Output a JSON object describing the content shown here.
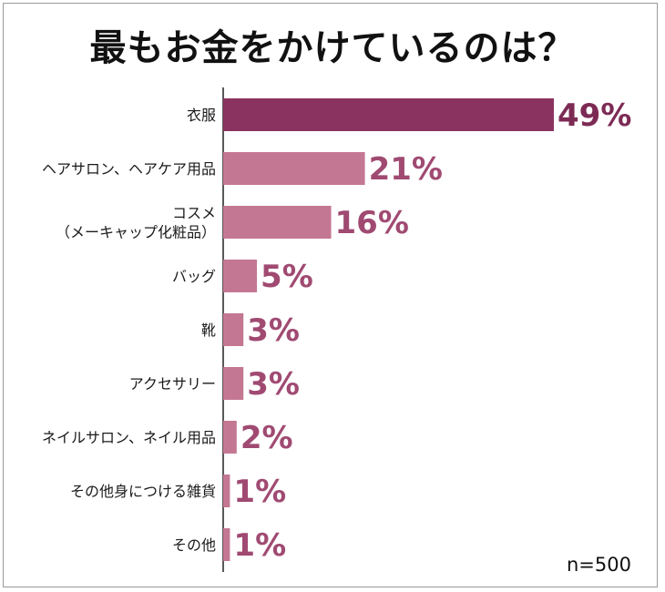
{
  "chart_data": {
    "type": "bar",
    "orientation": "horizontal",
    "title": "最もお金をかけているのは？",
    "categories": [
      [
        "衣服"
      ],
      [
        "ヘアサロン、ヘアケア用品"
      ],
      [
        "コスメ",
        "（メーキャップ化粧品）"
      ],
      [
        "バッグ"
      ],
      [
        "靴"
      ],
      [
        "アクセサリー"
      ],
      [
        "ネイルサロン、ネイル用品"
      ],
      [
        "その他身につける雑貨"
      ],
      [
        "その他"
      ]
    ],
    "values": [
      49,
      21,
      16,
      5,
      3,
      3,
      2,
      1,
      1
    ],
    "value_labels": [
      "49%",
      "21%",
      "16%",
      "5%",
      "3%",
      "3%",
      "2%",
      "1%",
      "1%"
    ],
    "unit": "%",
    "xlim": [
      0,
      49
    ],
    "grid": false,
    "legend": "none",
    "colors": {
      "highlight": "#8b3360",
      "bar": "#c47793",
      "label": "#a04a72",
      "highlight_label": "#7d2b55"
    },
    "note": "n=500"
  }
}
